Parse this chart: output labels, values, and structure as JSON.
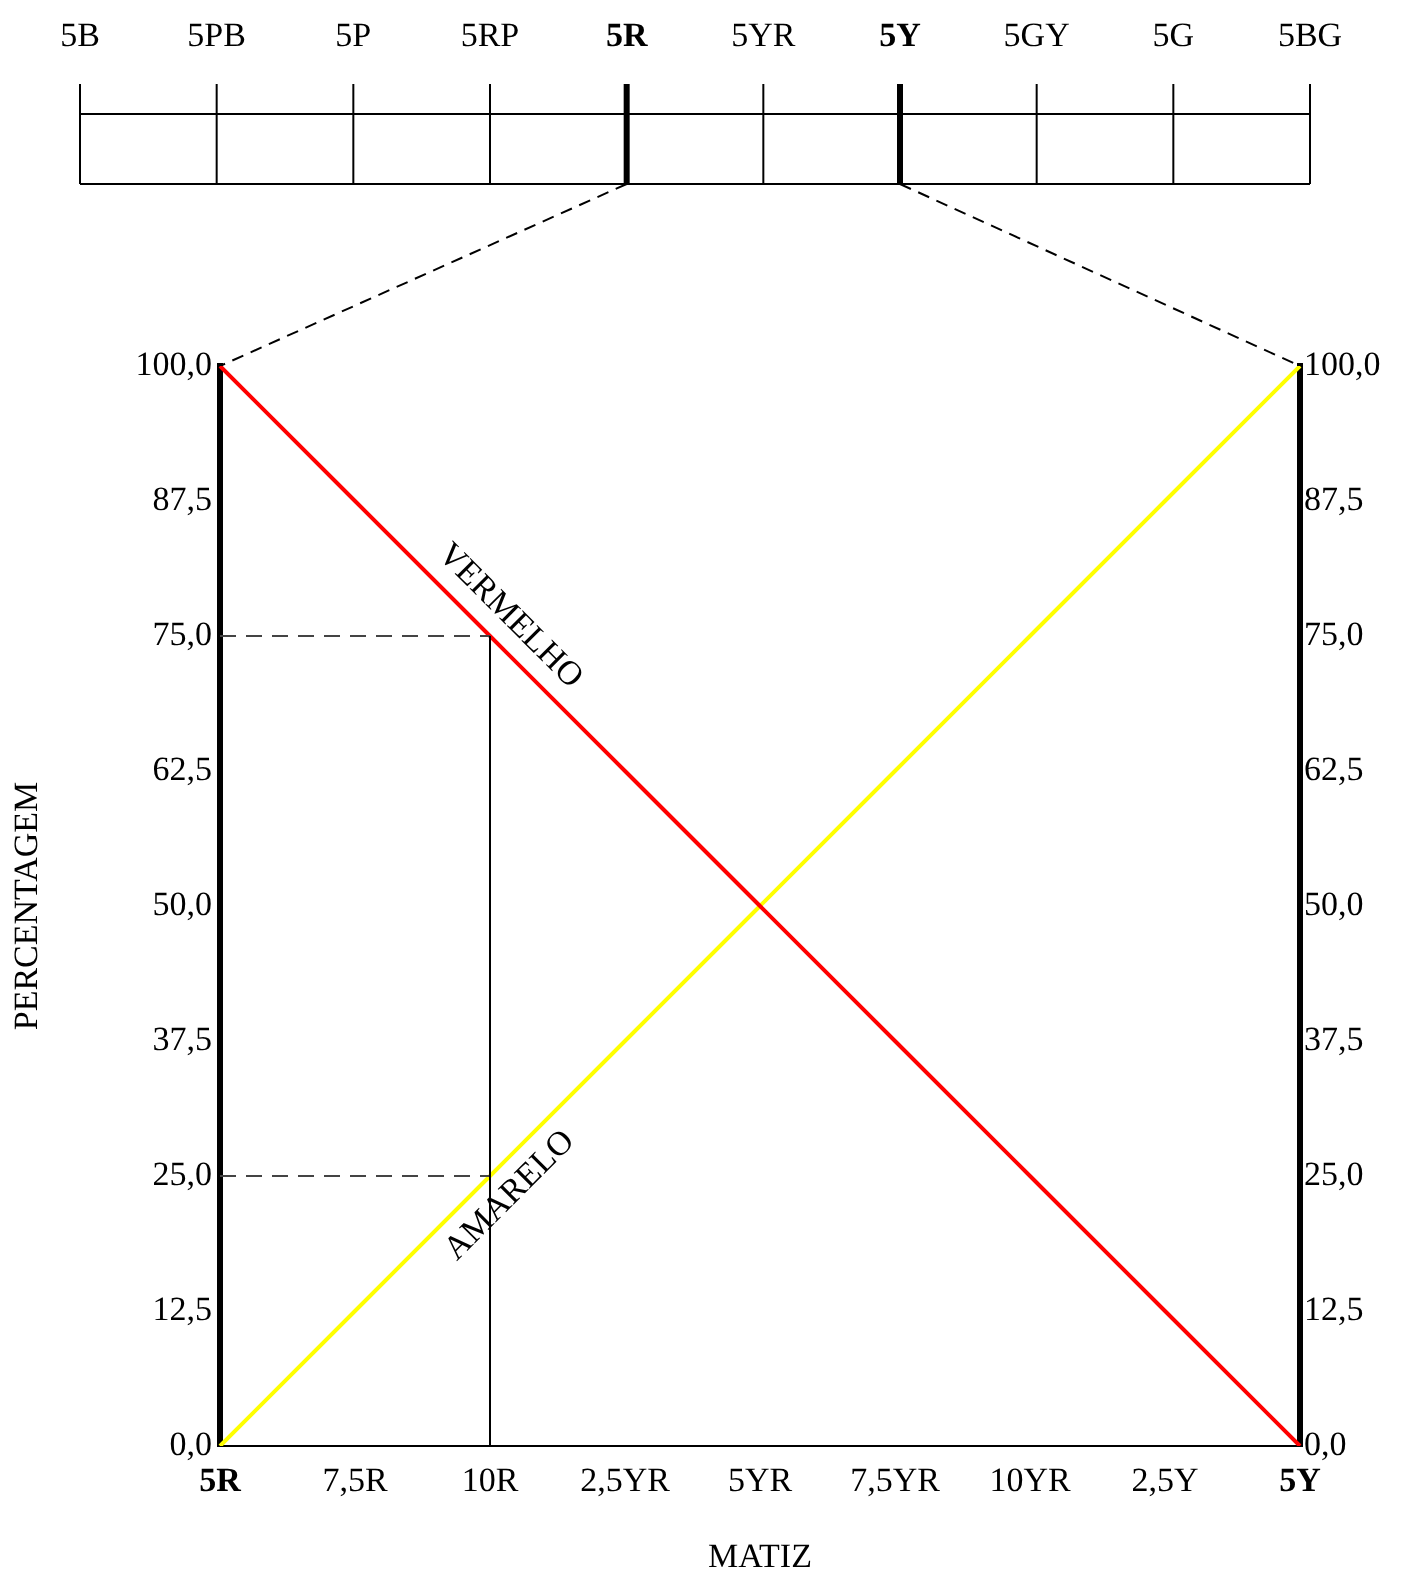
{
  "chart_data": {
    "type": "line",
    "xlabel": "MATIZ",
    "ylabel": "PERCENTAGEM",
    "annotations": [
      "5B",
      "5PB",
      "5P",
      "5RP",
      "5R",
      "5YR",
      "5Y",
      "5GY",
      "5G",
      "5BG"
    ],
    "categories": [
      "5R",
      "7,5R",
      "10R",
      "2,5YR",
      "5YR",
      "7,5YR",
      "10YR",
      "2,5Y",
      "5Y"
    ],
    "series": [
      {
        "name": "VERMELHO",
        "color": "#ff0000",
        "values": [
          100,
          87.5,
          75,
          62.5,
          50,
          37.5,
          25,
          12.5,
          0
        ]
      },
      {
        "name": "AMARELO",
        "color": "#ffff00",
        "values": [
          0,
          12.5,
          25,
          37.5,
          50,
          62.5,
          75,
          87.5,
          100
        ]
      }
    ],
    "ylim": [
      0,
      100
    ],
    "yticks": [
      {
        "value": 0,
        "label": "0,0"
      },
      {
        "value": 12.5,
        "label": "12,5"
      },
      {
        "value": 25,
        "label": "25,0"
      },
      {
        "value": 37.5,
        "label": "37,5"
      },
      {
        "value": 50,
        "label": "50,0"
      },
      {
        "value": 62.5,
        "label": "62,5"
      },
      {
        "value": 75,
        "label": "75,0"
      },
      {
        "value": 87.5,
        "label": "87,5"
      },
      {
        "value": 100,
        "label": "100,0"
      }
    ],
    "y2lim": [
      0,
      100
    ],
    "y2ticks": [
      {
        "value": 0,
        "label": "0,0"
      },
      {
        "value": 12.5,
        "label": "12,5"
      },
      {
        "value": 25,
        "label": "25,0"
      },
      {
        "value": 37.5,
        "label": "37,5"
      },
      {
        "value": 50,
        "label": "50,0"
      },
      {
        "value": 62.5,
        "label": "62,5"
      },
      {
        "value": 75,
        "label": "75,0"
      },
      {
        "value": 87.5,
        "label": "87,5"
      },
      {
        "value": 100,
        "label": "100,0"
      }
    ],
    "ref_lines": [
      {
        "axis": "y",
        "value": 75,
        "color": "#444444",
        "line_style": "dashed"
      },
      {
        "axis": "y",
        "value": 25,
        "color": "#444444",
        "line_style": "dashed"
      },
      {
        "axis": "x",
        "value": "10R",
        "color": "#000000",
        "line_style": "solid"
      }
    ],
    "grid": false,
    "legend": false,
    "marker": "none",
    "line_style": "solid"
  }
}
